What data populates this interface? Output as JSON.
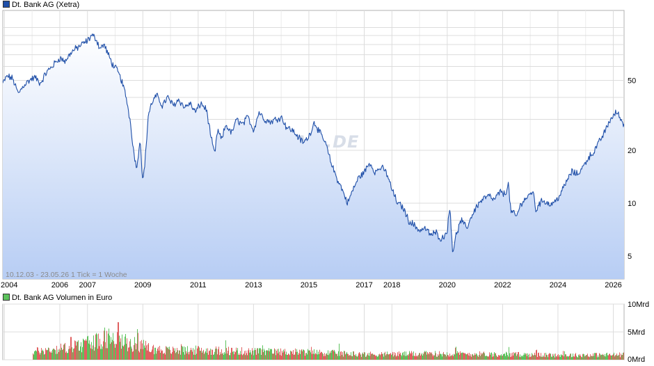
{
  "legends": {
    "price": "Dt. Bank AG (Xetra)",
    "volume": "Dt. Bank AG Volumen in Euro"
  },
  "note": "10.12.03 - 23.05.26   1 Tick = 1 Woche",
  "watermark": "ARIVA.DE",
  "colors": {
    "price_line": "#1f4fa8",
    "area_top": "#ffffff",
    "area_bottom": "#b7cdf4",
    "grid": "#dcdcdc",
    "vol_up": "#5cc25c",
    "vol_down": "#e06060",
    "legend_price": "#1f4fa8",
    "legend_volume": "#5cc25c"
  },
  "chart_data": [
    {
      "type": "line",
      "series_name": "Dt. Bank AG (Xetra)",
      "y_scale": "log",
      "ylim": [
        3.7,
        125
      ],
      "xlim": [
        2003.94,
        2026.39
      ],
      "x_ticks": [
        "2004",
        "2006",
        "2007",
        "2009",
        "2011",
        "2013",
        "2015",
        "2017",
        "2018",
        "2020",
        "2022",
        "2024",
        "2026"
      ],
      "x_tick_values": [
        2004,
        2006,
        2007,
        2009,
        2011,
        2013,
        2015,
        2017,
        2018,
        2020,
        2022,
        2024,
        2026
      ],
      "y_ticks": [
        50,
        20,
        10,
        5
      ],
      "grid": true,
      "x": [
        2003.94,
        2004.1,
        2004.3,
        2004.5,
        2004.7,
        2004.9,
        2005.1,
        2005.3,
        2005.5,
        2005.8,
        2006.0,
        2006.2,
        2006.4,
        2006.6,
        2006.8,
        2007.0,
        2007.15,
        2007.3,
        2007.45,
        2007.6,
        2007.75,
        2007.9,
        2008.1,
        2008.25,
        2008.4,
        2008.55,
        2008.7,
        2008.8,
        2008.9,
        2009.0,
        2009.1,
        2009.2,
        2009.35,
        2009.5,
        2009.7,
        2009.9,
        2010.1,
        2010.3,
        2010.5,
        2010.7,
        2010.9,
        2011.1,
        2011.3,
        2011.5,
        2011.6,
        2011.7,
        2011.85,
        2012.0,
        2012.2,
        2012.4,
        2012.6,
        2012.8,
        2013.0,
        2013.2,
        2013.4,
        2013.6,
        2013.8,
        2014.0,
        2014.2,
        2014.4,
        2014.6,
        2014.8,
        2015.0,
        2015.2,
        2015.4,
        2015.6,
        2015.8,
        2016.0,
        2016.2,
        2016.4,
        2016.6,
        2016.8,
        2017.0,
        2017.2,
        2017.4,
        2017.6,
        2017.8,
        2018.0,
        2018.2,
        2018.4,
        2018.6,
        2018.8,
        2019.0,
        2019.2,
        2019.4,
        2019.6,
        2019.8,
        2020.0,
        2020.1,
        2020.2,
        2020.3,
        2020.5,
        2020.7,
        2020.9,
        2021.1,
        2021.3,
        2021.5,
        2021.7,
        2021.9,
        2022.1,
        2022.2,
        2022.3,
        2022.5,
        2022.7,
        2022.9,
        2023.1,
        2023.2,
        2023.3,
        2023.5,
        2023.7,
        2023.9,
        2024.1,
        2024.3,
        2024.5,
        2024.7,
        2024.9,
        2025.1,
        2025.3,
        2025.5,
        2025.7,
        2025.9,
        2026.0,
        2026.1,
        2026.2,
        2026.39
      ],
      "values": [
        48,
        53,
        51,
        42,
        47,
        50,
        52,
        48,
        55,
        62,
        67,
        64,
        72,
        76,
        80,
        84,
        90,
        87,
        76,
        80,
        70,
        62,
        56,
        49,
        40,
        29,
        18,
        16,
        24,
        13,
        19,
        32,
        38,
        41,
        36,
        40,
        36,
        39,
        35,
        37,
        33,
        37,
        34,
        22,
        19,
        26,
        23,
        28,
        25,
        30,
        28,
        31,
        26,
        33,
        30,
        29,
        30,
        31,
        27,
        26,
        24,
        22,
        24,
        29,
        25,
        22,
        17,
        14,
        12,
        10,
        12,
        14,
        15,
        17,
        15,
        16,
        15,
        12,
        10,
        9.5,
        8.0,
        7.5,
        7.0,
        7.2,
        6.6,
        6.8,
        6.2,
        7.0,
        9.5,
        5.2,
        6.4,
        8.0,
        7.2,
        8.6,
        9.8,
        10.6,
        11.0,
        10.4,
        11.6,
        11.2,
        13.1,
        9.0,
        8.4,
        10.2,
        10.8,
        11.8,
        9.0,
        9.9,
        10.4,
        9.8,
        10.2,
        11.3,
        13.2,
        15.1,
        14.6,
        16.0,
        18.2,
        19.6,
        22.4,
        25.6,
        30.2,
        31.0,
        33.2,
        31.5,
        28.0
      ]
    },
    {
      "type": "bar",
      "series_name": "Dt. Bank AG Volumen in Euro",
      "ylim": [
        0,
        10
      ],
      "unit": "Mrd",
      "y_ticks": [
        "10Mrd",
        "5Mrd",
        "0Mrd"
      ],
      "y_tick_values": [
        10,
        5,
        0
      ],
      "envelope_years": [
        2005.0,
        2006.0,
        2006.8,
        2007.3,
        2007.8,
        2008.3,
        2008.8,
        2009.3,
        2010.0,
        2011.0,
        2012.0,
        2013.0,
        2015.0,
        2017.0,
        2020.0,
        2022.0,
        2024.0,
        2026.39
      ],
      "envelope_volumes": [
        1.6,
        2.2,
        2.8,
        3.6,
        4.0,
        3.4,
        3.0,
        2.2,
        1.8,
        1.9,
        1.8,
        1.6,
        1.5,
        1.1,
        1.2,
        1.1,
        0.9,
        1.0
      ],
      "peaks": [
        [
          2006.4,
          4.2
        ],
        [
          2007.0,
          4.4
        ],
        [
          2007.4,
          5.4
        ],
        [
          2007.6,
          6.4
        ],
        [
          2007.75,
          5.8
        ],
        [
          2008.1,
          6.9
        ],
        [
          2008.35,
          4.9
        ],
        [
          2008.8,
          5.8
        ],
        [
          2008.9,
          5.0
        ],
        [
          2010.4,
          2.8
        ],
        [
          2011.6,
          4.2
        ],
        [
          2012.0,
          3.6
        ],
        [
          2013.3,
          2.8
        ],
        [
          2015.1,
          2.5
        ],
        [
          2016.1,
          3.0
        ],
        [
          2020.3,
          2.6
        ],
        [
          2022.2,
          2.6
        ],
        [
          2023.2,
          2.0
        ],
        [
          2024.2,
          1.8
        ]
      ]
    }
  ]
}
